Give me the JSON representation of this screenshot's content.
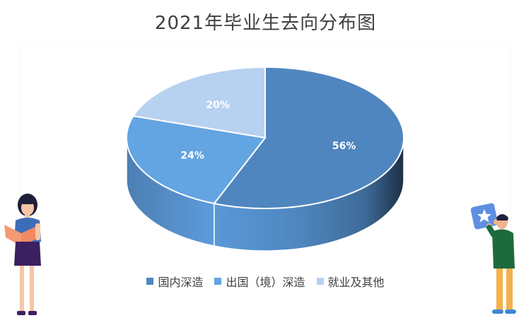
{
  "chart_data": {
    "type": "pie",
    "title": "2021年毕业生去向分布图",
    "style": "3d",
    "legend_position": "bottom",
    "slices": [
      {
        "label": "国内深造",
        "value": 56,
        "display": "56%",
        "color": "#4f86bf"
      },
      {
        "label": "出国（境）深造",
        "value": 24,
        "display": "24%",
        "color": "#63a4e2"
      },
      {
        "label": "就业及其他",
        "value": 20,
        "display": "20%",
        "color": "#b7d1f0"
      }
    ]
  },
  "illustrations": {
    "left": "woman-reading-book",
    "right": "man-holding-star-card"
  }
}
